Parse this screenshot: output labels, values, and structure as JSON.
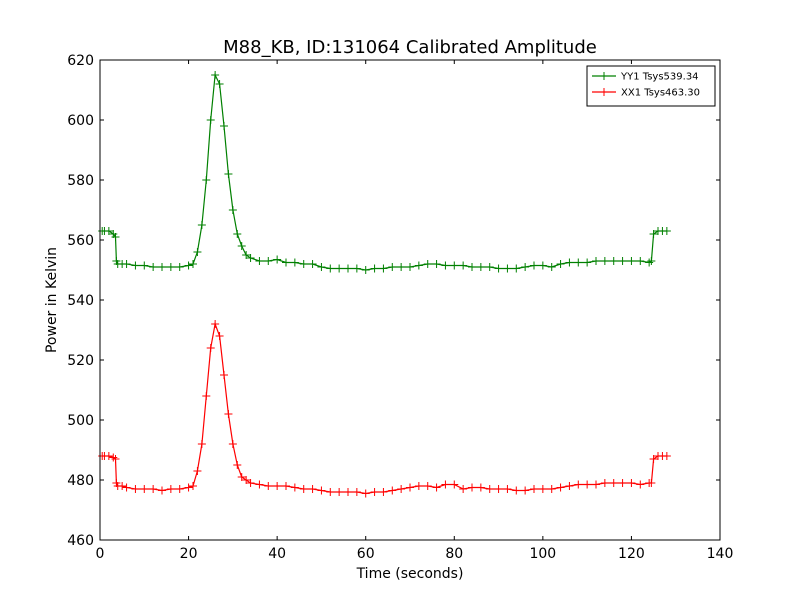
{
  "chart_data": {
    "type": "line",
    "title": "M88_KB, ID:131064 Calibrated Amplitude",
    "xlabel": "Time (seconds)",
    "ylabel": "Power in Kelvin",
    "xlim": [
      0,
      140
    ],
    "ylim": [
      460,
      620
    ],
    "xticks": [
      0,
      20,
      40,
      60,
      80,
      100,
      120,
      140
    ],
    "yticks": [
      460,
      480,
      500,
      520,
      540,
      560,
      580,
      600,
      620
    ],
    "grid": false,
    "legend_position": "top-right",
    "marker": "plus",
    "series": [
      {
        "name": "YY1 Tsys539.34",
        "color": "#008000",
        "x": [
          0.5,
          1,
          2,
          3,
          3.5,
          3.7,
          4,
          5,
          6,
          8,
          10,
          12,
          14,
          16,
          18,
          20,
          21,
          22,
          23,
          24,
          25,
          26,
          27,
          28,
          29,
          30,
          31,
          32,
          33,
          34,
          36,
          38,
          40,
          42,
          44,
          46,
          48,
          50,
          52,
          54,
          56,
          58,
          60,
          62,
          64,
          66,
          68,
          70,
          72,
          74,
          76,
          78,
          80,
          82,
          84,
          86,
          88,
          90,
          92,
          94,
          96,
          98,
          100,
          102,
          104,
          106,
          108,
          110,
          112,
          114,
          116,
          118,
          120,
          122,
          124,
          124.5,
          125,
          126,
          127,
          128
        ],
        "y": [
          563,
          563,
          563,
          562,
          561,
          553,
          552,
          552,
          552,
          551.5,
          551.5,
          551,
          551,
          551,
          551,
          551.5,
          552,
          556,
          565,
          580,
          600,
          615,
          612,
          598,
          582,
          570,
          562,
          558,
          555,
          554,
          553,
          553,
          553.5,
          552.5,
          552.5,
          552,
          552,
          551,
          550.5,
          550.5,
          550.5,
          550.5,
          550,
          550.5,
          550.5,
          551,
          551,
          551,
          551.5,
          552,
          552,
          551.5,
          551.5,
          551.5,
          551,
          551,
          551,
          550.5,
          550.5,
          550.5,
          551,
          551.5,
          551.5,
          551,
          552,
          552.5,
          552.5,
          552.5,
          553,
          553,
          553,
          553,
          553,
          553,
          552.5,
          553,
          562,
          563,
          563,
          563
        ]
      },
      {
        "name": "XX1 Tsys463.30",
        "color": "#ff0000",
        "x": [
          0.5,
          1,
          2,
          3,
          3.5,
          3.7,
          4,
          5,
          6,
          8,
          10,
          12,
          14,
          16,
          18,
          20,
          21,
          22,
          23,
          24,
          25,
          26,
          27,
          28,
          29,
          30,
          31,
          32,
          33,
          34,
          36,
          38,
          40,
          42,
          44,
          46,
          48,
          50,
          52,
          54,
          56,
          58,
          60,
          62,
          64,
          66,
          68,
          70,
          72,
          74,
          76,
          78,
          80,
          82,
          84,
          86,
          88,
          90,
          92,
          94,
          96,
          98,
          100,
          102,
          104,
          106,
          108,
          110,
          112,
          114,
          116,
          118,
          120,
          122,
          124,
          124.5,
          125,
          126,
          127,
          128
        ],
        "y": [
          488,
          488,
          488,
          487.5,
          487,
          479,
          478,
          478,
          477.5,
          477,
          477,
          477,
          476.5,
          477,
          477,
          477.5,
          478,
          483,
          492,
          508,
          524,
          532,
          528,
          515,
          502,
          492,
          485,
          481,
          480,
          479,
          478.5,
          478,
          478,
          478,
          477.5,
          477,
          477,
          476.5,
          476,
          476,
          476,
          476,
          475.5,
          476,
          476,
          476.5,
          477,
          477.5,
          478,
          478,
          477.5,
          478.5,
          478.5,
          477,
          477.5,
          477.5,
          477,
          477,
          477,
          476.5,
          476.5,
          477,
          477,
          477,
          477.5,
          478,
          478.5,
          478.5,
          478.5,
          479,
          479,
          479,
          479,
          478.5,
          479,
          479,
          487,
          488,
          488,
          488
        ]
      }
    ]
  }
}
